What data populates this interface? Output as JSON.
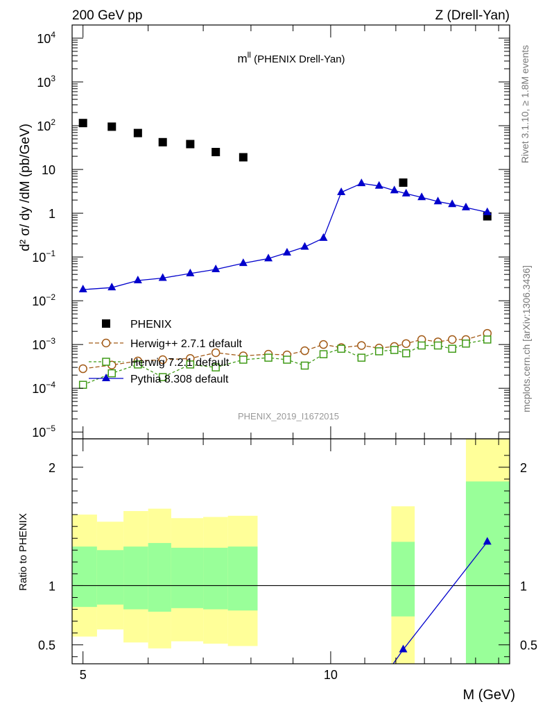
{
  "header": {
    "left": "200 GeV pp",
    "right": "Z (Drell-Yan)"
  },
  "side": {
    "rivet": "Rivet 3.1.10, ≥ 1.8M events",
    "site": "mcplots.cern.ch [arXiv:1306.3436]"
  },
  "chart_data": [
    {
      "type": "scatter",
      "title_main": "m",
      "title_sup": "ll",
      "title_rest": " (PHENIX Drell-Yan)",
      "ylabel": "d² σ/ dy /dM (pb/GeV)",
      "y_scale": "log",
      "ylim": [
        7e-06,
        20000
      ],
      "y_ticks": [
        {
          "v": 1e-05,
          "b": "10",
          "e": "−5"
        },
        {
          "v": 0.0001,
          "b": "10",
          "e": "−4"
        },
        {
          "v": 0.001,
          "b": "10",
          "e": "−3"
        },
        {
          "v": 0.01,
          "b": "10",
          "e": "−2"
        },
        {
          "v": 0.1,
          "b": "10",
          "e": "−1"
        },
        {
          "v": 1,
          "b": "1",
          "e": ""
        },
        {
          "v": 10,
          "b": "10",
          "e": ""
        },
        {
          "v": 100,
          "b": "10",
          "e": "2"
        },
        {
          "v": 1000,
          "b": "10",
          "e": "3"
        },
        {
          "v": 10000,
          "b": "10",
          "e": "4"
        }
      ],
      "watermark": "PHENIX_2019_I1672015",
      "legend_placement": "lower-left",
      "series": [
        {
          "name": "PHENIX",
          "color": "#000000",
          "marker": "square-filled",
          "x": [
            5.0,
            5.42,
            5.83,
            6.25,
            6.75,
            7.25,
            7.83,
            12.25,
            15.5
          ],
          "y": [
            115,
            95,
            68,
            42,
            38,
            25,
            19,
            5,
            0.85
          ]
        },
        {
          "name": "Herwig++ 2.7.1 default",
          "color": "#a25a16",
          "marker": "circle-open",
          "dash": "6,3",
          "x": [
            5.0,
            5.42,
            5.83,
            6.25,
            6.75,
            7.25,
            7.83,
            8.4,
            8.85,
            9.3,
            9.8,
            10.3,
            10.9,
            11.45,
            11.95,
            12.35,
            12.9,
            13.5,
            14.05,
            14.6,
            15.5
          ],
          "y": [
            0.00028,
            0.00034,
            0.00042,
            0.00045,
            0.00048,
            0.00065,
            0.00055,
            0.0006,
            0.00058,
            0.00072,
            0.001,
            0.00085,
            0.00095,
            0.00083,
            0.0009,
            0.00105,
            0.0013,
            0.00115,
            0.0013,
            0.0013,
            0.0018
          ]
        },
        {
          "name": "Herwig 7.2.1 default",
          "color": "#3f9a16",
          "marker": "square-open",
          "dash": "4,3",
          "x": [
            5.0,
            5.42,
            5.83,
            6.25,
            6.75,
            7.25,
            7.83,
            8.4,
            8.85,
            9.3,
            9.8,
            10.3,
            10.9,
            11.45,
            11.95,
            12.35,
            12.9,
            13.5,
            14.05,
            14.6,
            15.5
          ],
          "y": [
            0.00012,
            0.00022,
            0.00035,
            0.00018,
            0.00035,
            0.0003,
            0.00045,
            0.0005,
            0.00045,
            0.00033,
            0.0006,
            0.0008,
            0.0005,
            0.0007,
            0.00075,
            0.00063,
            0.00095,
            0.00095,
            0.0008,
            0.00105,
            0.0013
          ]
        },
        {
          "name": "Pythia 8.308 default",
          "color": "#0000cc",
          "marker": "triangle-filled",
          "dash": "",
          "x": [
            5.0,
            5.42,
            5.83,
            6.25,
            6.75,
            7.25,
            7.83,
            8.4,
            8.85,
            9.3,
            9.8,
            10.3,
            10.9,
            11.45,
            11.95,
            12.35,
            12.9,
            13.5,
            14.05,
            14.6,
            15.5
          ],
          "y": [
            0.018,
            0.02,
            0.029,
            0.033,
            0.042,
            0.052,
            0.072,
            0.092,
            0.125,
            0.17,
            0.27,
            3.0,
            4.8,
            4.2,
            3.3,
            2.8,
            2.3,
            1.85,
            1.6,
            1.35,
            1.05
          ]
        }
      ]
    },
    {
      "type": "scatter",
      "ylabel": "Ratio to PHENIX",
      "ylim": [
        0.34,
        2.24
      ],
      "y_ticks": [
        {
          "v": 0.5,
          "l": "0.5"
        },
        {
          "v": 1,
          "l": "1"
        },
        {
          "v": 2,
          "l": "2"
        }
      ],
      "xlabel": "M (GeV)",
      "x_scale": "log",
      "xlim": [
        4.85,
        16.5
      ],
      "x_ticks": [
        {
          "v": 5,
          "l": "5"
        },
        {
          "v": 10,
          "l": "10"
        }
      ],
      "reference_line": 1.0,
      "bands": [
        {
          "x0": 4.85,
          "x1": 5.2,
          "y1_lo": 0.82,
          "y1_hi": 1.33,
          "y2_lo": 0.57,
          "y2_hi": 1.6
        },
        {
          "x0": 5.2,
          "x1": 5.6,
          "y1_lo": 0.84,
          "y1_hi": 1.3,
          "y2_lo": 0.63,
          "y2_hi": 1.54
        },
        {
          "x0": 5.6,
          "x1": 6.0,
          "y1_lo": 0.8,
          "y1_hi": 1.33,
          "y2_lo": 0.52,
          "y2_hi": 1.63
        },
        {
          "x0": 6.0,
          "x1": 6.4,
          "y1_lo": 0.78,
          "y1_hi": 1.36,
          "y2_lo": 0.47,
          "y2_hi": 1.65
        },
        {
          "x0": 6.4,
          "x1": 7.0,
          "y1_lo": 0.81,
          "y1_hi": 1.32,
          "y2_lo": 0.53,
          "y2_hi": 1.57
        },
        {
          "x0": 7.0,
          "x1": 7.5,
          "y1_lo": 0.8,
          "y1_hi": 1.32,
          "y2_lo": 0.51,
          "y2_hi": 1.58
        },
        {
          "x0": 7.5,
          "x1": 8.15,
          "y1_lo": 0.79,
          "y1_hi": 1.33,
          "y2_lo": 0.49,
          "y2_hi": 1.59
        },
        {
          "x0": 11.85,
          "x1": 12.65,
          "y1_lo": 0.74,
          "y1_hi": 1.37,
          "y2_lo": 0.34,
          "y2_hi": 1.67
        },
        {
          "x0": 14.6,
          "x1": 16.5,
          "y1_lo": 0.34,
          "y1_hi": 1.88,
          "y2_lo": 0.34,
          "y2_hi": 2.24
        }
      ],
      "series": [
        {
          "name": "Pythia 8.308 default",
          "color": "#0000cc",
          "marker": "triangle-filled",
          "x": [
            11.8,
            12.25,
            15.5
          ],
          "y": [
            0.3,
            0.46,
            1.37
          ]
        }
      ]
    }
  ]
}
